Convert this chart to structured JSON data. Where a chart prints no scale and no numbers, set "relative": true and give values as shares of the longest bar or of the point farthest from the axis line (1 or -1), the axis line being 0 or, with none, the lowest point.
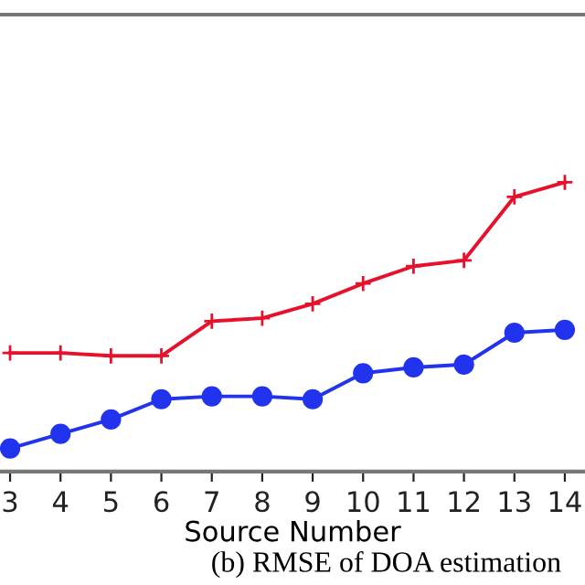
{
  "chart_data": {
    "type": "line",
    "relative": true,
    "xlabel": "Source Number",
    "x": [
      3,
      4,
      5,
      6,
      7,
      8,
      9,
      10,
      11,
      12,
      13,
      14
    ],
    "xlim": [
      2.8,
      14.4
    ],
    "xticks": [
      3,
      4,
      5,
      6,
      7,
      8,
      9,
      10,
      11,
      12,
      13,
      14
    ],
    "tick_labels": "x",
    "grid": false,
    "legend": false,
    "series": [
      {
        "color": "#e8102a",
        "marker": "cross",
        "values": [
          0.41,
          0.41,
          0.4,
          0.4,
          0.52,
          0.53,
          0.58,
          0.65,
          0.71,
          0.73,
          0.95,
          1.0
        ]
      },
      {
        "color": "#2233ee",
        "marker": "circle",
        "values": [
          0.08,
          0.13,
          0.18,
          0.25,
          0.26,
          0.26,
          0.25,
          0.34,
          0.36,
          0.37,
          0.48,
          0.49
        ]
      }
    ],
    "annotations": [
      "(b) RMSE of DOA estimation"
    ]
  }
}
